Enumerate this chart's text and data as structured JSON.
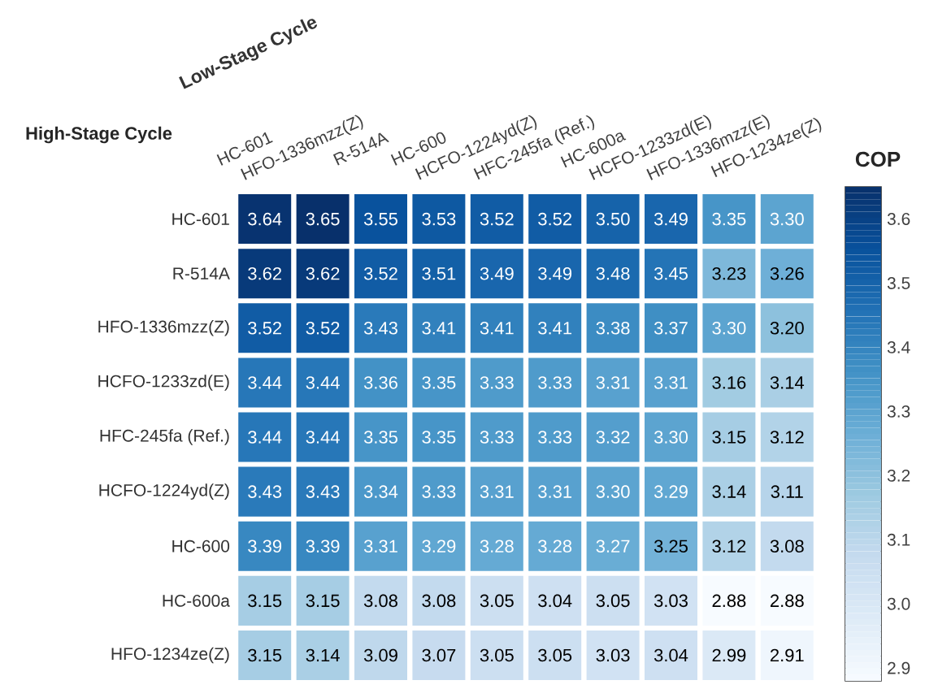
{
  "chart_data": {
    "type": "heatmap",
    "xlabel": "Low-Stage Cycle",
    "ylabel": "High-Stage Cycle",
    "clabel": "COP",
    "categories": [
      "HC-601",
      "HFO-1336mzz(Z)",
      "R-514A",
      "HC-600",
      "HCFO-1224yd(Z)",
      "HFC-245fa (Ref.)",
      "HC-600a",
      "HCFO-1233zd(E)",
      "HFO-1336mzz(E)",
      "HFO-1234ze(Z)"
    ],
    "y_categories": [
      "HC-601",
      "R-514A",
      "HFO-1336mzz(Z)",
      "HCFO-1233zd(E)",
      "HFC-245fa (Ref.)",
      "HCFO-1224yd(Z)",
      "HC-600",
      "HC-600a",
      "HFO-1234ze(Z)"
    ],
    "cells": [
      [
        3.64,
        3.65,
        3.55,
        3.53,
        3.52,
        3.52,
        3.5,
        3.49,
        3.35,
        3.3
      ],
      [
        3.62,
        3.62,
        3.52,
        3.51,
        3.49,
        3.49,
        3.48,
        3.45,
        3.23,
        3.26
      ],
      [
        3.52,
        3.52,
        3.43,
        3.41,
        3.41,
        3.41,
        3.38,
        3.37,
        3.3,
        3.2
      ],
      [
        3.44,
        3.44,
        3.36,
        3.35,
        3.33,
        3.33,
        3.31,
        3.31,
        3.16,
        3.14
      ],
      [
        3.44,
        3.44,
        3.35,
        3.35,
        3.33,
        3.33,
        3.32,
        3.3,
        3.15,
        3.12
      ],
      [
        3.43,
        3.43,
        3.34,
        3.33,
        3.31,
        3.31,
        3.3,
        3.29,
        3.14,
        3.11
      ],
      [
        3.39,
        3.39,
        3.31,
        3.29,
        3.28,
        3.28,
        3.27,
        3.25,
        3.12,
        3.08
      ],
      [
        3.15,
        3.15,
        3.08,
        3.08,
        3.05,
        3.04,
        3.05,
        3.03,
        2.88,
        2.88
      ],
      [
        3.15,
        3.14,
        3.09,
        3.07,
        3.05,
        3.05,
        3.03,
        3.04,
        2.99,
        2.91
      ]
    ],
    "cell_labels": [
      [
        "3.64",
        "3.65",
        "3.55",
        "3.53",
        "3.52",
        "3.52",
        "3.50",
        "3.49",
        "3.35",
        "3.30"
      ],
      [
        "3.62",
        "3.62",
        "3.52",
        "3.51",
        "3.49",
        "3.49",
        "3.48",
        "3.45",
        "3.23",
        "3.26"
      ],
      [
        "3.52",
        "3.52",
        "3.43",
        "3.41",
        "3.41",
        "3.41",
        "3.38",
        "3.37",
        "3.30",
        "3.20"
      ],
      [
        "3.44",
        "3.44",
        "3.36",
        "3.35",
        "3.33",
        "3.33",
        "3.31",
        "3.31",
        "3.16",
        "3.14"
      ],
      [
        "3.44",
        "3.44",
        "3.35",
        "3.35",
        "3.33",
        "3.33",
        "3.32",
        "3.30",
        "3.15",
        "3.12"
      ],
      [
        "3.43",
        "3.43",
        "3.34",
        "3.33",
        "3.31",
        "3.31",
        "3.30",
        "3.29",
        "3.14",
        "3.11"
      ],
      [
        "3.39",
        "3.39",
        "3.31",
        "3.29",
        "3.28",
        "3.28",
        "3.27",
        "3.25",
        "3.12",
        "3.08"
      ],
      [
        "3.15",
        "3.15",
        "3.08",
        "3.08",
        "3.05",
        "3.04",
        "3.05",
        "3.03",
        "2.88",
        "2.88"
      ],
      [
        "3.15",
        "3.14",
        "3.09",
        "3.07",
        "3.05",
        "3.05",
        "3.03",
        "3.04",
        "2.99",
        "2.91"
      ]
    ],
    "clim": [
      2.88,
      3.65
    ],
    "cticks": [
      2.9,
      {
        "value": 3.0,
        "label": "3.0"
      },
      3.1,
      3.2,
      3.3,
      3.4,
      3.5,
      3.6
    ]
  }
}
